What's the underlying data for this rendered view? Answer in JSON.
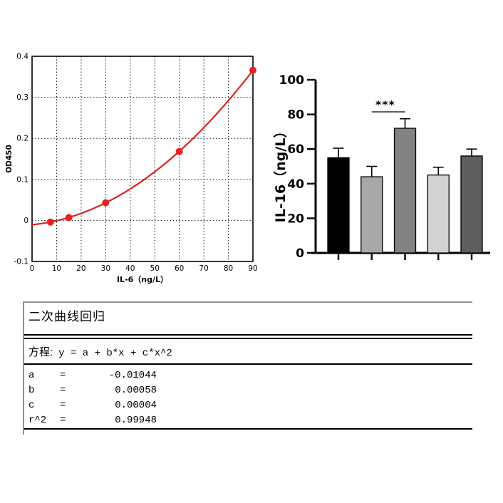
{
  "chart_data": [
    {
      "id": "standard_curve",
      "type": "scatter",
      "title": "",
      "xlabel": "IL-6（ng/L）",
      "ylabel": "OD450",
      "xlim": [
        0,
        90
      ],
      "ylim": [
        -0.1,
        0.4
      ],
      "xticks": [
        0,
        10,
        20,
        30,
        40,
        50,
        60,
        70,
        80,
        90
      ],
      "yticks": [
        -0.1,
        0,
        0.1,
        0.2,
        0.3,
        0.4
      ],
      "x": [
        7.5,
        15,
        30,
        60,
        90
      ],
      "y": [
        -0.004,
        0.007,
        0.043,
        0.168,
        0.366
      ],
      "fit": {
        "type": "quadratic",
        "a": -0.01044,
        "b": 0.00058,
        "c": 4e-05
      },
      "line_color": "#dd2222",
      "point_color": "#e32222",
      "grid": true,
      "grid_style": "dotted",
      "legend": "none"
    },
    {
      "id": "bar_chart",
      "type": "bar",
      "title": "",
      "ylabel": "IL-16（ng/L）",
      "ylim": [
        0,
        100
      ],
      "yticks": [
        0,
        20,
        40,
        60,
        80,
        100
      ],
      "categories": [
        "",
        "",
        "",
        "",
        ""
      ],
      "values": [
        55,
        44,
        72,
        45,
        56
      ],
      "errors_upper": [
        5.5,
        6,
        5.5,
        4.5,
        4
      ],
      "bar_colors": [
        "#000000",
        "#a8a8a8",
        "#828282",
        "#d2d2d2",
        "#5e5e5e"
      ],
      "axis_color": "#000000",
      "significance": {
        "label": "***",
        "bars": [
          2,
          3
        ]
      },
      "legend": "none"
    },
    {
      "id": "regression_table",
      "type": "table",
      "title": "二次曲线回归",
      "equation_label": "方程:",
      "equation": "y = a + b*x + c*x^2",
      "rows": [
        [
          "a",
          "=",
          "-0.01044"
        ],
        [
          "b",
          "=",
          "0.00058"
        ],
        [
          "c",
          "=",
          "0.00004"
        ],
        [
          "r^2",
          "=",
          "0.99948"
        ]
      ]
    }
  ]
}
